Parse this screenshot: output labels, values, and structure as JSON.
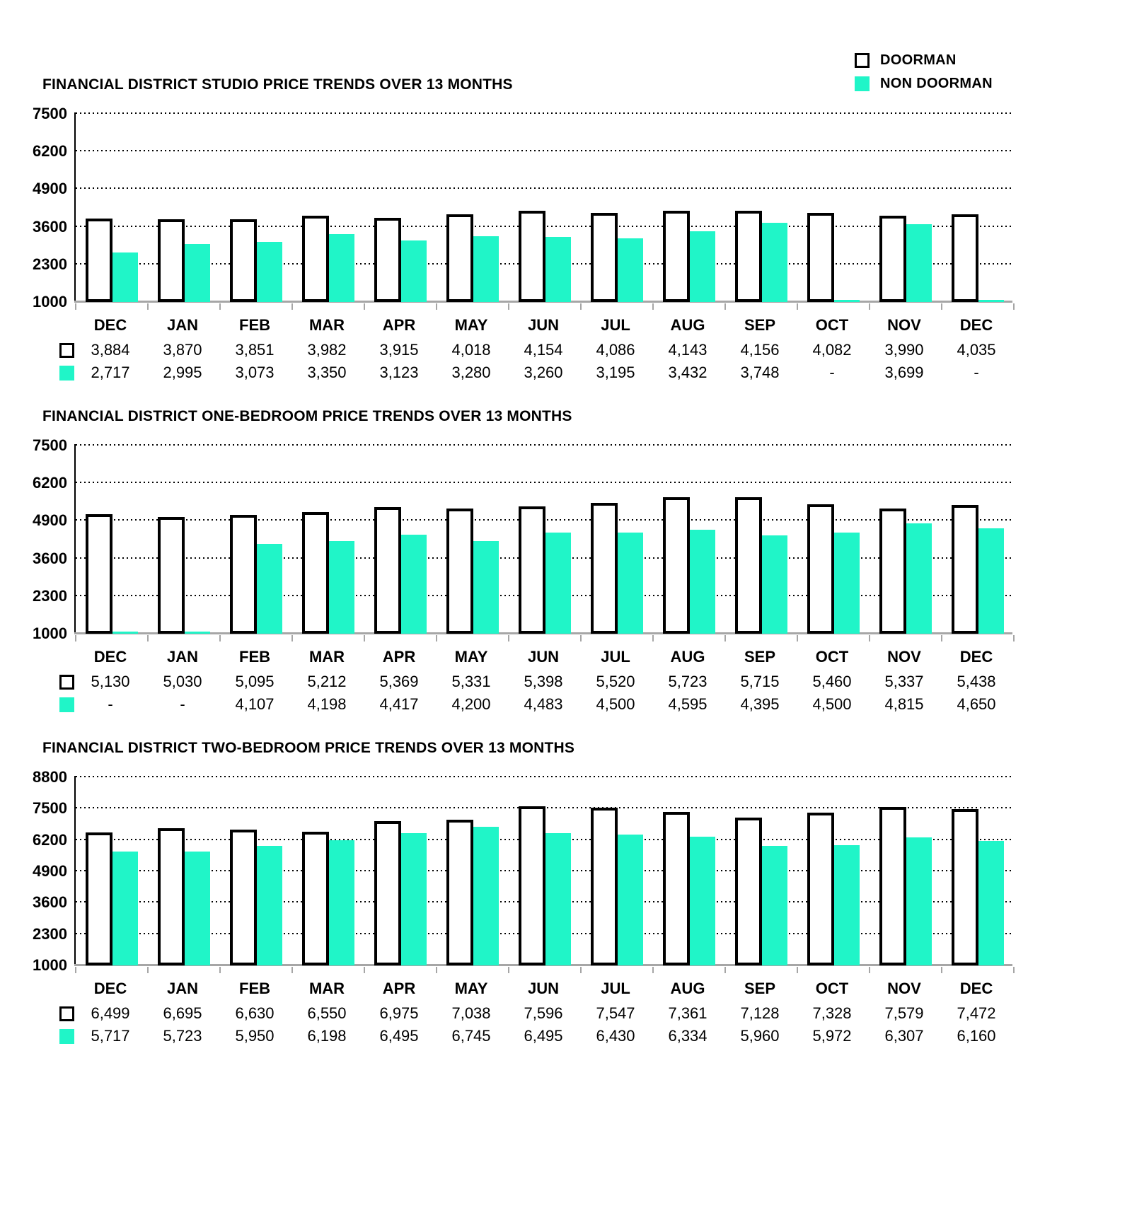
{
  "page": {
    "background": "#ffffff"
  },
  "legend": {
    "items": [
      {
        "label": "DOORMAN",
        "swatch": "outlined"
      },
      {
        "label": "NON DOORMAN",
        "swatch": "filled"
      }
    ]
  },
  "colors": {
    "doorman_fill": "#ffffff",
    "doorman_border": "#000000",
    "non_doorman_fill": "#20f5c8",
    "baseline": "#a6a6a6",
    "grid": "#000000"
  },
  "missing_value_label": "-",
  "chart_data": [
    {
      "type": "bar",
      "title": "FINANCIAL DISTRICT STUDIO PRICE TRENDS OVER 13 MONTHS",
      "categories": [
        "DEC",
        "JAN",
        "FEB",
        "MAR",
        "APR",
        "MAY",
        "JUN",
        "JUL",
        "AUG",
        "SEP",
        "OCT",
        "NOV",
        "DEC"
      ],
      "series": [
        {
          "name": "DOORMAN",
          "values": [
            3884,
            3870,
            3851,
            3982,
            3915,
            4018,
            4154,
            4086,
            4143,
            4156,
            4082,
            3990,
            4035
          ]
        },
        {
          "name": "NON DOORMAN",
          "values": [
            2717,
            2995,
            3073,
            3350,
            3123,
            3280,
            3260,
            3195,
            3432,
            3748,
            null,
            3699,
            null
          ]
        }
      ],
      "yticks": [
        7500,
        6200,
        4900,
        3600,
        2300,
        1000
      ],
      "ylim": [
        1000,
        7500
      ],
      "grid": "dotted-horizontal",
      "legend_position": "top-right"
    },
    {
      "type": "bar",
      "title": "FINANCIAL DISTRICT ONE-BEDROOM PRICE TRENDS OVER 13 MONTHS",
      "categories": [
        "DEC",
        "JAN",
        "FEB",
        "MAR",
        "APR",
        "MAY",
        "JUN",
        "JUL",
        "AUG",
        "SEP",
        "OCT",
        "NOV",
        "DEC"
      ],
      "series": [
        {
          "name": "DOORMAN",
          "values": [
            5130,
            5030,
            5095,
            5212,
            5369,
            5331,
            5398,
            5520,
            5723,
            5715,
            5460,
            5337,
            5438
          ]
        },
        {
          "name": "NON DOORMAN",
          "values": [
            null,
            null,
            4107,
            4198,
            4417,
            4200,
            4483,
            4500,
            4595,
            4395,
            4500,
            4815,
            4650
          ]
        }
      ],
      "yticks": [
        7500,
        6200,
        4900,
        3600,
        2300,
        1000
      ],
      "ylim": [
        1000,
        7500
      ],
      "grid": "dotted-horizontal",
      "legend_position": "top-right"
    },
    {
      "type": "bar",
      "title": "FINANCIAL DISTRICT TWO-BEDROOM PRICE TRENDS OVER 13 MONTHS",
      "categories": [
        "DEC",
        "JAN",
        "FEB",
        "MAR",
        "APR",
        "MAY",
        "JUN",
        "JUL",
        "AUG",
        "SEP",
        "OCT",
        "NOV",
        "DEC"
      ],
      "series": [
        {
          "name": "DOORMAN",
          "values": [
            6499,
            6695,
            6630,
            6550,
            6975,
            7038,
            7596,
            7547,
            7361,
            7128,
            7328,
            7579,
            7472
          ]
        },
        {
          "name": "NON DOORMAN",
          "values": [
            5717,
            5723,
            5950,
            6198,
            6495,
            6745,
            6495,
            6430,
            6334,
            5960,
            5972,
            6307,
            6160
          ]
        }
      ],
      "yticks": [
        8800,
        7500,
        6200,
        4900,
        3600,
        2300,
        1000
      ],
      "ylim": [
        1000,
        8800
      ],
      "grid": "dotted-horizontal",
      "legend_position": "top-right"
    }
  ]
}
